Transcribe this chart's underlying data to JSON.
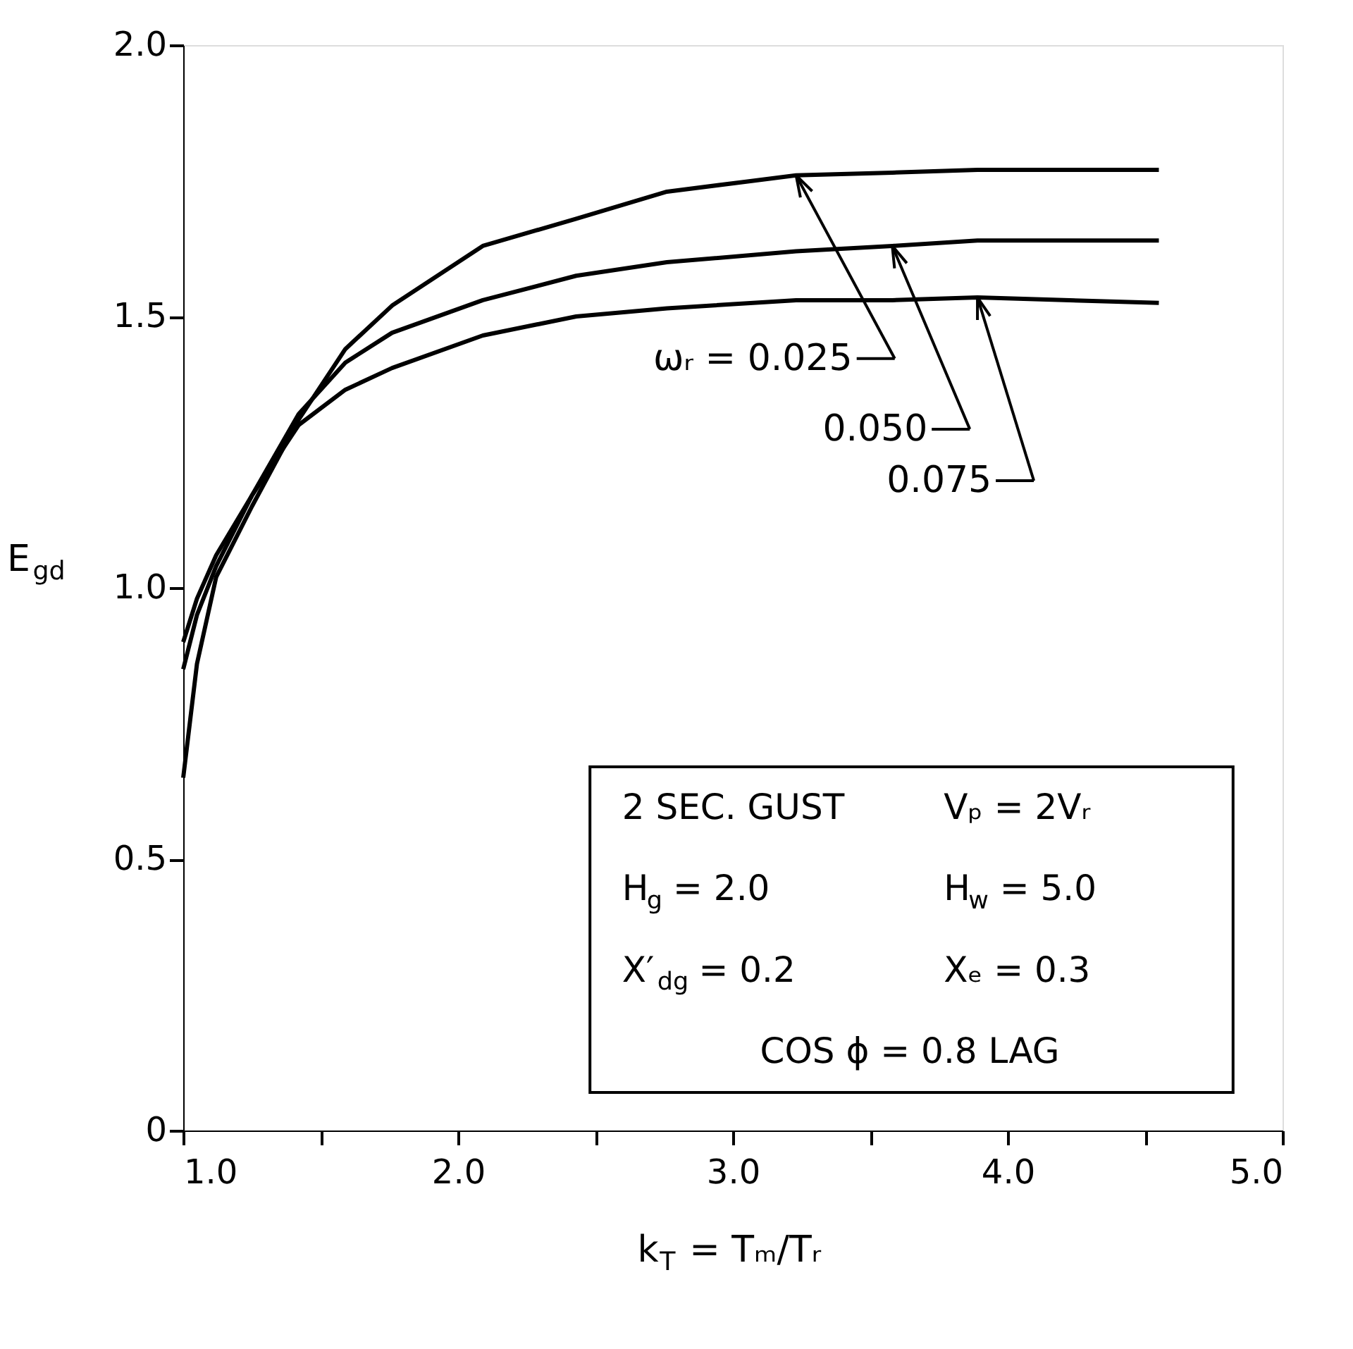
{
  "chart_data": {
    "type": "line",
    "xlabel": "k$_{T}$ = Tₘ/Tᵣ",
    "ylabel": "E$_{gd}$",
    "x": [
      1.0,
      1.05,
      1.12,
      1.25,
      1.42,
      1.59,
      1.76,
      2.09,
      2.43,
      2.76,
      3.23,
      3.58,
      3.89,
      4.55
    ],
    "series": [
      {
        "name": "ωᵣ = 0.025",
        "color": "#000000",
        "values": [
          0.65,
          0.86,
          1.02,
          1.15,
          1.31,
          1.44,
          1.52,
          1.63,
          1.68,
          1.73,
          1.76,
          1.765,
          1.77,
          1.77
        ]
      },
      {
        "name": "0.050",
        "color": "#000000",
        "values": [
          0.85,
          0.95,
          1.04,
          1.17,
          1.32,
          1.415,
          1.47,
          1.53,
          1.575,
          1.6,
          1.62,
          1.63,
          1.64,
          1.64
        ]
      },
      {
        "name": "0.075",
        "color": "#000000",
        "values": [
          0.9,
          0.98,
          1.06,
          1.17,
          1.3,
          1.365,
          1.405,
          1.465,
          1.5,
          1.515,
          1.53,
          1.53,
          1.535,
          1.525
        ]
      }
    ],
    "xlim": [
      1.0,
      5.0
    ],
    "ylim": [
      0,
      2.0
    ],
    "xticks": [
      {
        "value": 1,
        "label": "1.0"
      },
      {
        "value": 1.5,
        "label": null
      },
      {
        "value": 2,
        "label": "2.0"
      },
      {
        "value": 2.5,
        "label": null
      },
      {
        "value": 3,
        "label": "3.0"
      },
      {
        "value": 3.5,
        "label": null
      },
      {
        "value": 4,
        "label": "4.0"
      },
      {
        "value": 4.5,
        "label": null
      },
      {
        "value": 5,
        "label": "5.0"
      }
    ],
    "yticks": [
      0,
      0.5,
      {
        "value": 1,
        "label": "1.0"
      },
      1.5,
      {
        "value": 2,
        "label": "2.0"
      }
    ],
    "annotations": [
      "2 SEC. GUST",
      "Vₚ = 2Vᵣ",
      "H$_{g}$ = 2.0",
      "H$_{w}$ = 5.0",
      "X′$_{dg}$ = 0.2",
      "Xₑ = 0.3",
      "COS ϕ = 0.8 LAG"
    ],
    "grid": false,
    "legend": "top right",
    "marker": "none",
    "line_style": "solid"
  }
}
